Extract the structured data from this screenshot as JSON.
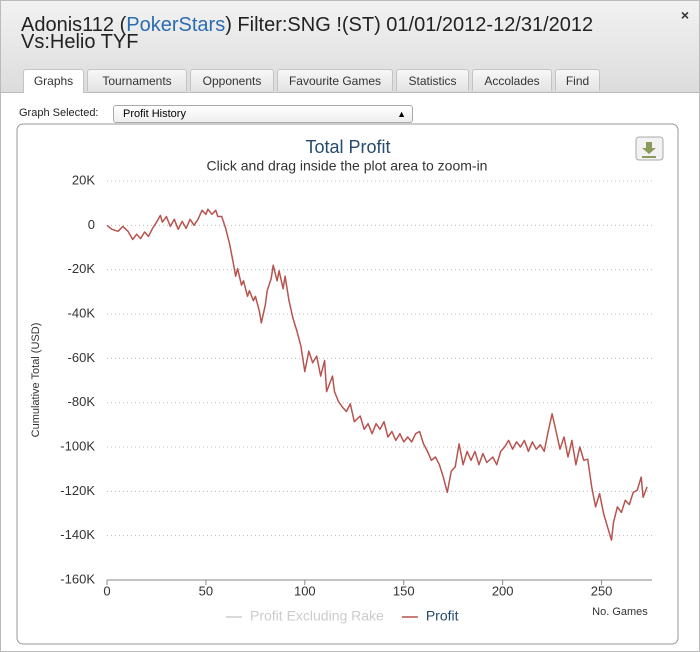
{
  "header": {
    "title_start": "Adonis112 (",
    "title_link": "PokerStars",
    "title_end": ") Filter:SNG !(ST) 01/01/2012-12/31/2012 Vs:Helio TYF",
    "close": "×"
  },
  "tabs": [
    "Graphs",
    "Tournaments",
    "Opponents",
    "Favourite Games",
    "Statistics",
    "Accolades",
    "Find"
  ],
  "graph_selector": {
    "label": "Graph Selected:",
    "value": "Profit History"
  },
  "chart_data": {
    "type": "line",
    "title": "Total Profit",
    "subtitle": "Click and drag inside the plot area to zoom-in",
    "x_label": "No. Games",
    "y_label": "Cumulative Total (USD)",
    "grid": true,
    "xlim": [
      0,
      277
    ],
    "ylim": [
      -160000,
      20000
    ],
    "xticks": [
      0,
      50,
      100,
      150,
      200,
      250
    ],
    "yticks": [
      {
        "value": 20000,
        "label": "20K"
      },
      0,
      {
        "value": -20000,
        "label": "-20K"
      },
      {
        "value": -40000,
        "label": "-40K"
      },
      {
        "value": -60000,
        "label": "-60K"
      },
      {
        "value": -80000,
        "label": "-80K"
      },
      {
        "value": -100000,
        "label": "-100K"
      },
      {
        "value": -120000,
        "label": "-120K"
      },
      {
        "value": -140000,
        "label": "-140K"
      },
      {
        "value": -160000,
        "label": "-160K"
      }
    ],
    "x": [
      0,
      2.5,
      5.6,
      8,
      10.6,
      13,
      15,
      17,
      19,
      21,
      23,
      25,
      27,
      28,
      30,
      32,
      34,
      36,
      38,
      40,
      42,
      44,
      46,
      48,
      50,
      51,
      53,
      55,
      56,
      58,
      60,
      62,
      64,
      65,
      66,
      68,
      69,
      71,
      72,
      74,
      75,
      77,
      78,
      80,
      81,
      83,
      84,
      86,
      87,
      89,
      90,
      92,
      94,
      96,
      98,
      100,
      102,
      104,
      106,
      108,
      110,
      111,
      114,
      115,
      117,
      119,
      121,
      123,
      125,
      128,
      130,
      132,
      134,
      136,
      138,
      140,
      142,
      144,
      146,
      148,
      150,
      152,
      154,
      156,
      158,
      160,
      162,
      164,
      166,
      168,
      170,
      172,
      174,
      176,
      178,
      180,
      182,
      184,
      186,
      188,
      190,
      192,
      195,
      197,
      199,
      201,
      203,
      205,
      207,
      209,
      211,
      213,
      215,
      217,
      219,
      221,
      223,
      225,
      227,
      229,
      231,
      233,
      235,
      237,
      239,
      241,
      243,
      245,
      247,
      249,
      251,
      253,
      255,
      256,
      258,
      260,
      262,
      264,
      266,
      268,
      270,
      271,
      273
    ],
    "series": [
      {
        "name": "Profit Excluding Rake",
        "color": "#cccccc",
        "visible": false
      },
      {
        "name": "Profit",
        "color": "#b85450",
        "visible": true,
        "values": [
          0,
          -1800,
          -2700,
          -500,
          -2700,
          -6400,
          -4000,
          -6000,
          -3000,
          -5000,
          -1400,
          1400,
          4500,
          1400,
          4000,
          -500,
          2700,
          -1800,
          1800,
          -1400,
          2700,
          0,
          2700,
          6800,
          5000,
          7300,
          5000,
          6800,
          4000,
          4000,
          -1400,
          -8600,
          -17700,
          -23000,
          -19500,
          -27000,
          -25000,
          -32000,
          -29500,
          -34000,
          -32000,
          -38600,
          -44000,
          -36000,
          -29500,
          -24000,
          -18000,
          -25000,
          -20500,
          -28600,
          -23000,
          -34000,
          -42000,
          -47700,
          -54500,
          -66000,
          -56800,
          -62000,
          -59000,
          -68000,
          -61000,
          -75000,
          -68000,
          -75000,
          -79500,
          -82000,
          -84000,
          -80500,
          -88600,
          -86000,
          -92000,
          -89500,
          -94000,
          -89500,
          -92000,
          -88600,
          -95500,
          -93000,
          -97000,
          -94000,
          -97700,
          -95500,
          -97700,
          -94000,
          -93000,
          -98600,
          -102000,
          -106000,
          -104500,
          -108000,
          -113600,
          -120500,
          -111000,
          -109000,
          -98600,
          -108000,
          -102000,
          -106000,
          -102000,
          -108000,
          -103000,
          -107000,
          -104500,
          -108000,
          -102000,
          -100000,
          -97000,
          -101000,
          -97700,
          -100000,
          -97000,
          -102000,
          -97700,
          -101000,
          -99000,
          -102000,
          -93000,
          -85000,
          -93000,
          -101000,
          -95500,
          -104500,
          -97000,
          -108000,
          -100000,
          -106000,
          -105500,
          -118000,
          -127000,
          -121000,
          -130000,
          -136000,
          -142000,
          -134000,
          -127000,
          -129500,
          -124000,
          -126000,
          -120500,
          -119500,
          -113600,
          -122700,
          -118000
        ]
      }
    ]
  }
}
